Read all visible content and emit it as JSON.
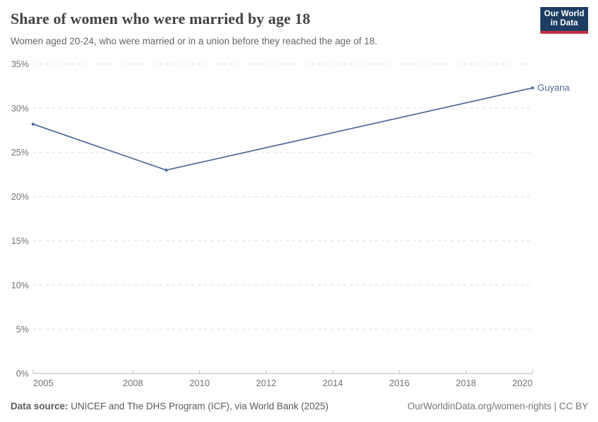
{
  "header": {
    "title": "Share of women who were married by age 18",
    "subtitle": "Women aged 20-24, who were married or in a union before they reached the age of 18.",
    "logo": {
      "line1": "Our World",
      "line2": "in Data"
    }
  },
  "chart_data": {
    "type": "line",
    "title": "Share of women who were married by age 18",
    "xlabel": "",
    "ylabel": "",
    "xlim": [
      2005,
      2020
    ],
    "ylim": [
      0,
      35
    ],
    "xticks": [
      2005,
      2008,
      2010,
      2012,
      2014,
      2016,
      2018,
      2020
    ],
    "yticks": [
      0,
      5,
      10,
      15,
      20,
      25,
      30,
      35
    ],
    "ytick_suffix": "%",
    "grid": "horizontal-dashed",
    "legend_position": "end-of-line-label",
    "series": [
      {
        "name": "Guyana",
        "color": "#4C6A9C",
        "points": [
          {
            "x": 2005,
            "y": 28.2
          },
          {
            "x": 2009,
            "y": 23.0
          },
          {
            "x": 2020,
            "y": 32.3
          }
        ]
      }
    ]
  },
  "footer": {
    "source_label": "Data source:",
    "source_text": " UNICEF and The DHS Program (ICF), via World Bank (2025)",
    "link_text": "OurWorldinData.org/women-rights | CC BY"
  },
  "colors": {
    "line": "#4C6A9C",
    "grid": "#dedede",
    "axis": "#b9b9b9",
    "tick_label": "#737373",
    "title": "#444444",
    "subtitle": "#666666",
    "footer": "#5b5b5b",
    "logo_bg": "#1d3d63",
    "logo_stripe": "#c5303c"
  }
}
